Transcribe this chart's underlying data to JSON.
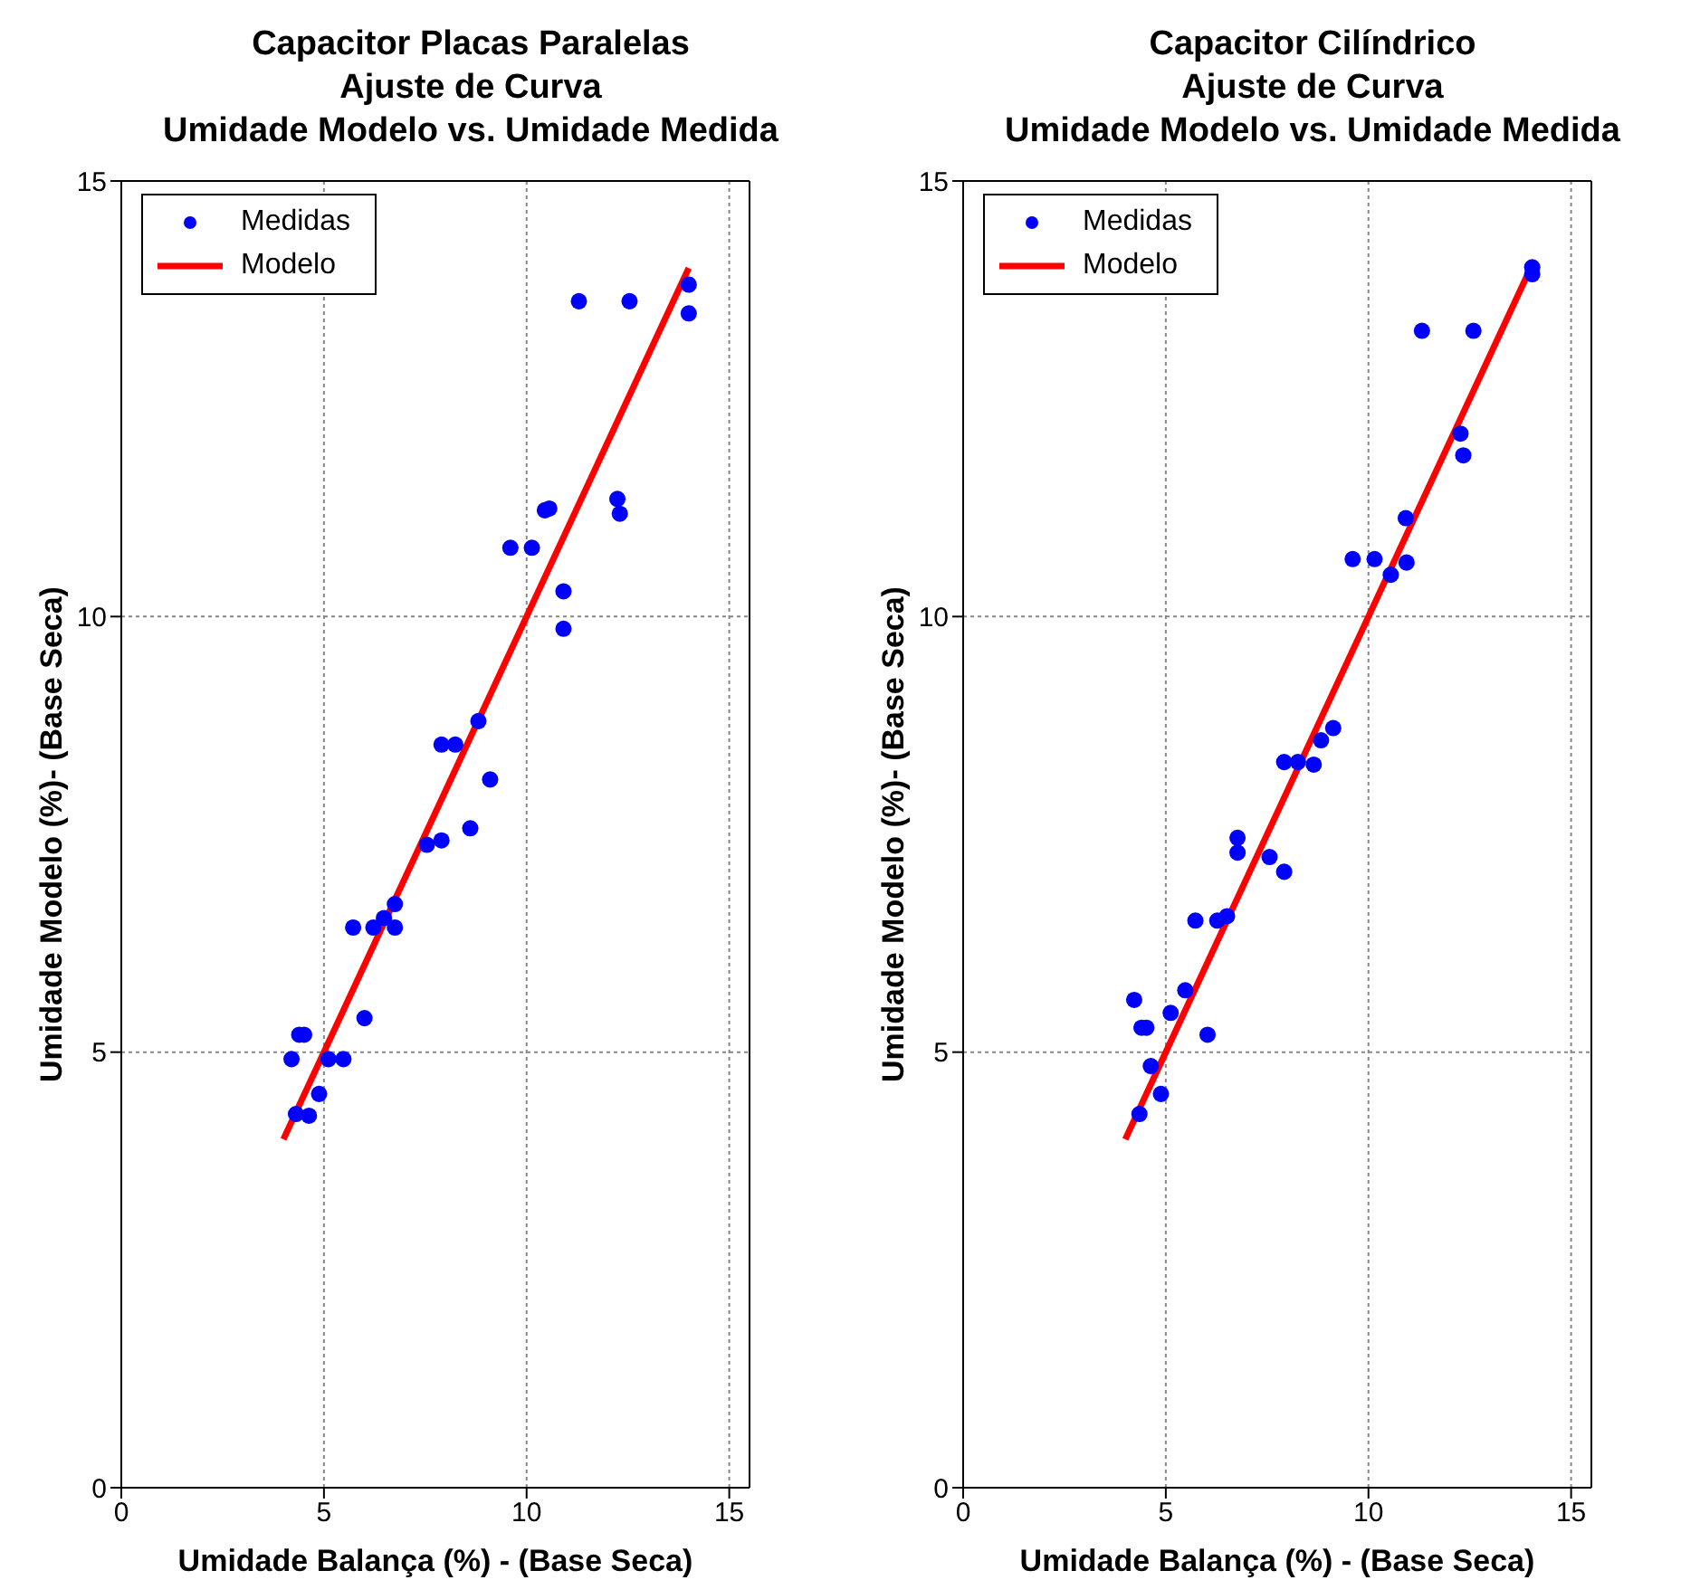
{
  "chart_data": [
    {
      "type": "scatter",
      "title": "Capacitor Placas Paralelas\nAjuste de Curva\nUmidade Modelo vs. Umidade Medida",
      "xlabel": "Umidade Balança (%) - (Base Seca)",
      "ylabel": "Umidade Modelo (%)- (Base Seca)",
      "xlim": [
        0,
        15.5
      ],
      "ylim": [
        0,
        15
      ],
      "xticks": [
        0,
        5,
        10,
        15
      ],
      "yticks": [
        0,
        5,
        10,
        15
      ],
      "grid": true,
      "legend": "top left",
      "series": [
        {
          "name": "Medidas",
          "type": "scatter",
          "color": "#0000ff",
          "marker": "circle",
          "x": [
            4.2,
            4.39,
            4.51,
            5.11,
            5.48,
            6.0,
            4.88,
            4.31,
            4.63,
            5.72,
            6.22,
            6.48,
            6.75,
            6.75,
            7.54,
            7.9,
            8.61,
            9.1,
            7.9,
            8.24,
            8.81,
            10.91,
            10.91,
            9.6,
            10.13,
            10.45,
            10.56,
            12.24,
            12.3,
            11.29,
            12.54,
            14.0,
            14.0
          ],
          "values": [
            4.92,
            5.2,
            5.2,
            4.92,
            4.92,
            5.39,
            4.52,
            4.29,
            4.27,
            6.43,
            6.43,
            6.54,
            6.7,
            6.43,
            7.38,
            7.43,
            7.57,
            8.13,
            8.53,
            8.53,
            8.8,
            10.29,
            9.86,
            10.79,
            10.79,
            11.22,
            11.24,
            11.35,
            11.18,
            13.62,
            13.62,
            13.81,
            13.48
          ]
        },
        {
          "name": "Modelo",
          "type": "line",
          "color": "#ff0000",
          "marker": "none",
          "x": [
            4,
            14
          ],
          "values": [
            4,
            14
          ]
        }
      ]
    },
    {
      "type": "scatter",
      "title": "Capacitor Cilíndrico\nAjuste de Curva\nUmidade Modelo vs. Umidade Medida",
      "xlabel": "Umidade Balança (%) - (Base Seca)",
      "ylabel": "Umidade Modelo (%)- (Base Seca)",
      "xlim": [
        0,
        15.5
      ],
      "ylim": [
        0,
        15
      ],
      "xticks": [
        0,
        5,
        10,
        15
      ],
      "yticks": [
        0,
        5,
        10,
        15
      ],
      "grid": true,
      "legend": "top left",
      "series": [
        {
          "name": "Medidas",
          "type": "scatter",
          "color": "#0000ff",
          "marker": "circle",
          "x": [
            14.04,
            14.04,
            11.32,
            12.59,
            12.27,
            12.34,
            10.92,
            9.61,
            10.15,
            10.94,
            10.55,
            9.13,
            8.83,
            7.92,
            8.26,
            8.65,
            6.77,
            6.77,
            7.56,
            7.92,
            5.73,
            6.27,
            6.51,
            5.48,
            4.22,
            5.12,
            4.4,
            4.52,
            6.03,
            4.63,
            4.88,
            4.35
          ],
          "values": [
            14.01,
            13.93,
            13.28,
            13.28,
            12.1,
            11.85,
            11.13,
            10.66,
            10.66,
            10.62,
            10.48,
            8.72,
            8.58,
            8.33,
            8.33,
            8.3,
            7.46,
            7.29,
            7.24,
            7.07,
            6.51,
            6.51,
            6.56,
            5.71,
            5.6,
            5.45,
            5.28,
            5.28,
            5.2,
            4.84,
            4.52,
            4.29
          ]
        },
        {
          "name": "Modelo",
          "type": "line",
          "color": "#ff0000",
          "marker": "none",
          "x": [
            4,
            14
          ],
          "values": [
            4,
            14
          ]
        }
      ]
    }
  ]
}
